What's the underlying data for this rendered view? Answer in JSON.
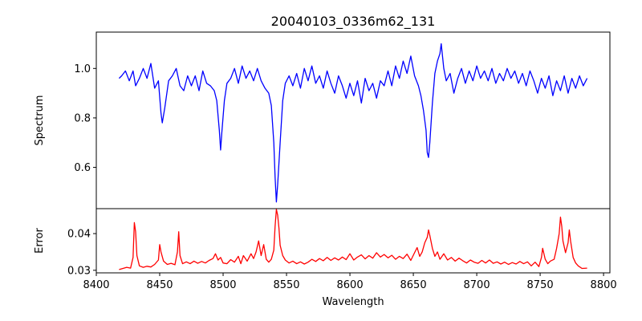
{
  "chart_data": {
    "type": "line",
    "title": "20040103_0336m62_131",
    "xlabel": "Wavelength",
    "xlim": [
      8400,
      8805
    ],
    "xticks": [
      8400,
      8450,
      8500,
      8550,
      8600,
      8650,
      8700,
      8750,
      8800
    ],
    "x_range": [
      8418,
      8787
    ],
    "panels": [
      {
        "name": "spectrum",
        "ylabel": "Spectrum",
        "color": "#0000ff",
        "ylim": [
          0.433,
          1.147
        ],
        "yticks": [
          0.6,
          0.8,
          1.0
        ],
        "ytick_labels": [
          "0.6",
          "0.8",
          "1.0"
        ],
        "points": [
          [
            8418,
            0.96
          ],
          [
            8420,
            0.97
          ],
          [
            8423,
            0.99
          ],
          [
            8426,
            0.95
          ],
          [
            8429,
            0.99
          ],
          [
            8431,
            0.93
          ],
          [
            8434,
            0.96
          ],
          [
            8437,
            1.0
          ],
          [
            8440,
            0.96
          ],
          [
            8443,
            1.02
          ],
          [
            8446,
            0.92
          ],
          [
            8449,
            0.95
          ],
          [
            8451,
            0.82
          ],
          [
            8452,
            0.78
          ],
          [
            8454,
            0.84
          ],
          [
            8457,
            0.95
          ],
          [
            8460,
            0.97
          ],
          [
            8463,
            1.0
          ],
          [
            8466,
            0.93
          ],
          [
            8469,
            0.91
          ],
          [
            8472,
            0.97
          ],
          [
            8475,
            0.93
          ],
          [
            8478,
            0.97
          ],
          [
            8481,
            0.91
          ],
          [
            8484,
            0.99
          ],
          [
            8487,
            0.94
          ],
          [
            8490,
            0.93
          ],
          [
            8493,
            0.91
          ],
          [
            8495,
            0.87
          ],
          [
            8497,
            0.75
          ],
          [
            8498,
            0.67
          ],
          [
            8499,
            0.74
          ],
          [
            8501,
            0.87
          ],
          [
            8503,
            0.94
          ],
          [
            8506,
            0.96
          ],
          [
            8509,
            1.0
          ],
          [
            8512,
            0.94
          ],
          [
            8515,
            1.01
          ],
          [
            8518,
            0.96
          ],
          [
            8521,
            0.99
          ],
          [
            8524,
            0.95
          ],
          [
            8527,
            1.0
          ],
          [
            8530,
            0.95
          ],
          [
            8533,
            0.92
          ],
          [
            8536,
            0.9
          ],
          [
            8538,
            0.85
          ],
          [
            8540,
            0.7
          ],
          [
            8541,
            0.56
          ],
          [
            8542,
            0.46
          ],
          [
            8543,
            0.53
          ],
          [
            8545,
            0.7
          ],
          [
            8547,
            0.87
          ],
          [
            8549,
            0.94
          ],
          [
            8552,
            0.97
          ],
          [
            8555,
            0.93
          ],
          [
            8558,
            0.98
          ],
          [
            8561,
            0.92
          ],
          [
            8564,
            1.0
          ],
          [
            8567,
            0.95
          ],
          [
            8570,
            1.01
          ],
          [
            8573,
            0.94
          ],
          [
            8576,
            0.97
          ],
          [
            8579,
            0.92
          ],
          [
            8582,
            0.99
          ],
          [
            8585,
            0.94
          ],
          [
            8588,
            0.9
          ],
          [
            8591,
            0.97
          ],
          [
            8594,
            0.93
          ],
          [
            8597,
            0.88
          ],
          [
            8600,
            0.94
          ],
          [
            8603,
            0.89
          ],
          [
            8606,
            0.95
          ],
          [
            8609,
            0.86
          ],
          [
            8612,
            0.96
          ],
          [
            8615,
            0.91
          ],
          [
            8618,
            0.94
          ],
          [
            8621,
            0.88
          ],
          [
            8624,
            0.95
          ],
          [
            8627,
            0.93
          ],
          [
            8630,
            0.99
          ],
          [
            8633,
            0.93
          ],
          [
            8636,
            1.01
          ],
          [
            8639,
            0.96
          ],
          [
            8642,
            1.03
          ],
          [
            8645,
            0.98
          ],
          [
            8648,
            1.05
          ],
          [
            8651,
            0.97
          ],
          [
            8654,
            0.93
          ],
          [
            8656,
            0.89
          ],
          [
            8658,
            0.83
          ],
          [
            8660,
            0.75
          ],
          [
            8661,
            0.66
          ],
          [
            8662,
            0.64
          ],
          [
            8663,
            0.7
          ],
          [
            8665,
            0.86
          ],
          [
            8667,
            0.98
          ],
          [
            8669,
            1.03
          ],
          [
            8671,
            1.06
          ],
          [
            8672,
            1.1
          ],
          [
            8674,
            1.0
          ],
          [
            8676,
            0.95
          ],
          [
            8679,
            0.98
          ],
          [
            8682,
            0.9
          ],
          [
            8685,
            0.96
          ],
          [
            8688,
            1.0
          ],
          [
            8691,
            0.94
          ],
          [
            8694,
            0.99
          ],
          [
            8697,
            0.95
          ],
          [
            8700,
            1.01
          ],
          [
            8703,
            0.96
          ],
          [
            8706,
            0.99
          ],
          [
            8709,
            0.95
          ],
          [
            8712,
            1.0
          ],
          [
            8715,
            0.94
          ],
          [
            8718,
            0.98
          ],
          [
            8721,
            0.95
          ],
          [
            8724,
            1.0
          ],
          [
            8727,
            0.96
          ],
          [
            8730,
            0.99
          ],
          [
            8733,
            0.94
          ],
          [
            8736,
            0.98
          ],
          [
            8739,
            0.93
          ],
          [
            8742,
            0.99
          ],
          [
            8745,
            0.95
          ],
          [
            8748,
            0.9
          ],
          [
            8751,
            0.96
          ],
          [
            8754,
            0.92
          ],
          [
            8757,
            0.97
          ],
          [
            8760,
            0.89
          ],
          [
            8763,
            0.95
          ],
          [
            8766,
            0.91
          ],
          [
            8769,
            0.97
          ],
          [
            8772,
            0.9
          ],
          [
            8775,
            0.96
          ],
          [
            8778,
            0.92
          ],
          [
            8781,
            0.97
          ],
          [
            8784,
            0.93
          ],
          [
            8787,
            0.96
          ]
        ]
      },
      {
        "name": "error",
        "ylabel": "Error",
        "color": "#ff0000",
        "ylim": [
          0.0293,
          0.0468
        ],
        "yticks": [
          0.03,
          0.04
        ],
        "ytick_labels": [
          "0.03",
          "0.04"
        ],
        "points": [
          [
            8418,
            0.0302
          ],
          [
            8421,
            0.0305
          ],
          [
            8424,
            0.0308
          ],
          [
            8427,
            0.0306
          ],
          [
            8429,
            0.0335
          ],
          [
            8430,
            0.043
          ],
          [
            8431,
            0.0405
          ],
          [
            8432,
            0.034
          ],
          [
            8434,
            0.0312
          ],
          [
            8437,
            0.0308
          ],
          [
            8440,
            0.0311
          ],
          [
            8443,
            0.0309
          ],
          [
            8446,
            0.0316
          ],
          [
            8449,
            0.0328
          ],
          [
            8450,
            0.037
          ],
          [
            8451,
            0.035
          ],
          [
            8453,
            0.0325
          ],
          [
            8456,
            0.0316
          ],
          [
            8459,
            0.0319
          ],
          [
            8462,
            0.0315
          ],
          [
            8464,
            0.035
          ],
          [
            8465,
            0.0405
          ],
          [
            8466,
            0.034
          ],
          [
            8468,
            0.0318
          ],
          [
            8471,
            0.0323
          ],
          [
            8474,
            0.0318
          ],
          [
            8477,
            0.0325
          ],
          [
            8480,
            0.0319
          ],
          [
            8483,
            0.0324
          ],
          [
            8486,
            0.032
          ],
          [
            8489,
            0.0327
          ],
          [
            8492,
            0.0332
          ],
          [
            8494,
            0.0345
          ],
          [
            8496,
            0.0328
          ],
          [
            8498,
            0.0335
          ],
          [
            8500,
            0.032
          ],
          [
            8503,
            0.0318
          ],
          [
            8506,
            0.0329
          ],
          [
            8509,
            0.0322
          ],
          [
            8512,
            0.0338
          ],
          [
            8514,
            0.0318
          ],
          [
            8516,
            0.034
          ],
          [
            8519,
            0.0325
          ],
          [
            8522,
            0.0345
          ],
          [
            8524,
            0.0332
          ],
          [
            8526,
            0.035
          ],
          [
            8528,
            0.038
          ],
          [
            8530,
            0.034
          ],
          [
            8532,
            0.037
          ],
          [
            8534,
            0.033
          ],
          [
            8536,
            0.0322
          ],
          [
            8538,
            0.033
          ],
          [
            8540,
            0.0355
          ],
          [
            8541,
            0.042
          ],
          [
            8542,
            0.0466
          ],
          [
            8543,
            0.045
          ],
          [
            8544,
            0.0415
          ],
          [
            8545,
            0.0368
          ],
          [
            8547,
            0.034
          ],
          [
            8549,
            0.0328
          ],
          [
            8552,
            0.032
          ],
          [
            8555,
            0.0325
          ],
          [
            8558,
            0.0318
          ],
          [
            8561,
            0.0323
          ],
          [
            8564,
            0.0317
          ],
          [
            8567,
            0.0322
          ],
          [
            8570,
            0.033
          ],
          [
            8573,
            0.0324
          ],
          [
            8576,
            0.0332
          ],
          [
            8579,
            0.0326
          ],
          [
            8582,
            0.0335
          ],
          [
            8585,
            0.0327
          ],
          [
            8588,
            0.0334
          ],
          [
            8591,
            0.0328
          ],
          [
            8594,
            0.0336
          ],
          [
            8597,
            0.0329
          ],
          [
            8600,
            0.0345
          ],
          [
            8603,
            0.0328
          ],
          [
            8606,
            0.0336
          ],
          [
            8609,
            0.0342
          ],
          [
            8612,
            0.0331
          ],
          [
            8615,
            0.034
          ],
          [
            8618,
            0.0333
          ],
          [
            8621,
            0.0348
          ],
          [
            8624,
            0.0336
          ],
          [
            8627,
            0.0343
          ],
          [
            8630,
            0.0334
          ],
          [
            8633,
            0.0341
          ],
          [
            8636,
            0.033
          ],
          [
            8639,
            0.0338
          ],
          [
            8642,
            0.0332
          ],
          [
            8645,
            0.0344
          ],
          [
            8648,
            0.0327
          ],
          [
            8651,
            0.0348
          ],
          [
            8653,
            0.0362
          ],
          [
            8655,
            0.0338
          ],
          [
            8657,
            0.035
          ],
          [
            8659,
            0.0375
          ],
          [
            8661,
            0.039
          ],
          [
            8662,
            0.041
          ],
          [
            8663,
            0.0395
          ],
          [
            8665,
            0.036
          ],
          [
            8667,
            0.0338
          ],
          [
            8669,
            0.035
          ],
          [
            8671,
            0.033
          ],
          [
            8674,
            0.0345
          ],
          [
            8677,
            0.0328
          ],
          [
            8680,
            0.0335
          ],
          [
            8683,
            0.0325
          ],
          [
            8686,
            0.0333
          ],
          [
            8689,
            0.0326
          ],
          [
            8692,
            0.032
          ],
          [
            8695,
            0.0328
          ],
          [
            8698,
            0.0322
          ],
          [
            8701,
            0.0319
          ],
          [
            8704,
            0.0327
          ],
          [
            8707,
            0.032
          ],
          [
            8710,
            0.0328
          ],
          [
            8713,
            0.0319
          ],
          [
            8716,
            0.0323
          ],
          [
            8719,
            0.0317
          ],
          [
            8722,
            0.0322
          ],
          [
            8725,
            0.0316
          ],
          [
            8728,
            0.0321
          ],
          [
            8731,
            0.0317
          ],
          [
            8734,
            0.0324
          ],
          [
            8737,
            0.0318
          ],
          [
            8740,
            0.0323
          ],
          [
            8743,
            0.0312
          ],
          [
            8746,
            0.0322
          ],
          [
            8749,
            0.031
          ],
          [
            8751,
            0.0335
          ],
          [
            8752,
            0.036
          ],
          [
            8754,
            0.033
          ],
          [
            8756,
            0.0318
          ],
          [
            8758,
            0.0325
          ],
          [
            8761,
            0.033
          ],
          [
            8763,
            0.036
          ],
          [
            8765,
            0.04
          ],
          [
            8766,
            0.0445
          ],
          [
            8767,
            0.042
          ],
          [
            8768,
            0.038
          ],
          [
            8770,
            0.0348
          ],
          [
            8772,
            0.0375
          ],
          [
            8773,
            0.041
          ],
          [
            8774,
            0.038
          ],
          [
            8776,
            0.0335
          ],
          [
            8778,
            0.032
          ],
          [
            8780,
            0.0312
          ],
          [
            8783,
            0.0305
          ],
          [
            8787,
            0.0306
          ]
        ]
      }
    ]
  }
}
